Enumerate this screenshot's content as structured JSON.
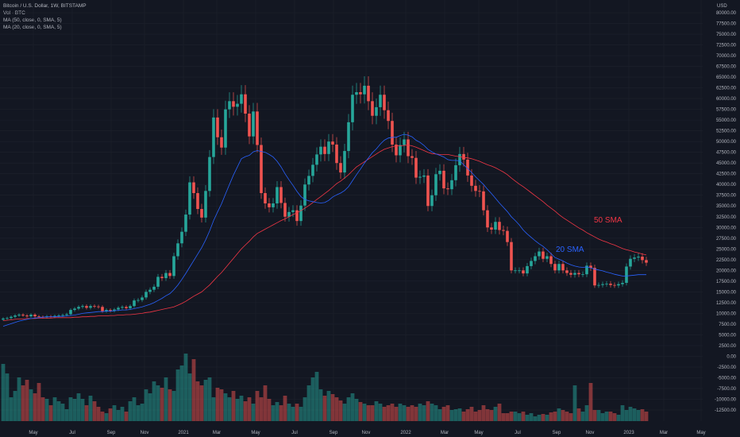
{
  "header": {
    "title": "Bitcoin / U.S. Dollar, 1W, BITSTAMP",
    "vol": "Vol · BTC",
    "ma50": "MA (50, close, 0, SMA, 5)",
    "ma20": "MA (20, close, 0, SMA, 5)"
  },
  "colors": {
    "up": "#26a69a",
    "down": "#ef5350",
    "sma20": "#2962ff",
    "sma50": "#f23645",
    "bg": "#131722",
    "text": "#b2b5be"
  },
  "chart_data": {
    "type": "candlestick",
    "price_axis": {
      "label": "USD",
      "ticks": [
        "80000.00",
        "77500.00",
        "75000.00",
        "72500.00",
        "70000.00",
        "67500.00",
        "65000.00",
        "62500.00",
        "60000.00",
        "57500.00",
        "55000.00",
        "52500.00",
        "50000.00",
        "47500.00",
        "45000.00",
        "42500.00",
        "40000.00",
        "37500.00",
        "35000.00",
        "32500.00",
        "30000.00",
        "27500.00",
        "25000.00",
        "22500.00",
        "20000.00",
        "17500.00",
        "15000.00",
        "12500.00",
        "10000.00",
        "7500.00",
        "5000.00",
        "2500.00",
        "0.00",
        "-2500.00",
        "-5000.00",
        "-7500.00",
        "-10000.00",
        "-12500.00"
      ]
    },
    "time_axis": [
      "May",
      "Jul",
      "Sep",
      "Nov",
      "2021",
      "Mar",
      "May",
      "Jul",
      "Sep",
      "Nov",
      "2022",
      "Mar",
      "May",
      "Jul",
      "Sep",
      "Nov",
      "2023",
      "Mar",
      "May"
    ],
    "annotations": [
      {
        "text": "50 SMA",
        "series": "sma50"
      },
      {
        "text": "20 SMA",
        "series": "sma20"
      }
    ],
    "closes": [
      8800,
      8900,
      9200,
      9500,
      9700,
      9500,
      9300,
      9700,
      9300,
      9200,
      9100,
      9300,
      9200,
      9400,
      9500,
      9600,
      9800,
      10800,
      11100,
      11500,
      11700,
      11300,
      11700,
      11600,
      11500,
      10500,
      10800,
      10600,
      10900,
      11300,
      11500,
      11200,
      11700,
      13000,
      13100,
      13700,
      15000,
      15500,
      16200,
      18500,
      18200,
      19400,
      18700,
      23300,
      26300,
      29000,
      33000,
      40500,
      38000,
      34300,
      32300,
      38500,
      46400,
      55600,
      51000,
      48600,
      57500,
      59400,
      58100,
      58800,
      61000,
      56500,
      51200,
      57000,
      49200,
      38000,
      35600,
      34700,
      35600,
      39400,
      35700,
      32500,
      33600,
      34000,
      31500,
      35100,
      40000,
      42000,
      44600,
      47000,
      48800,
      47100,
      50000,
      49300,
      45000,
      42800,
      47800,
      54500,
      60900,
      61500,
      61000,
      63000,
      59400,
      56000,
      58000,
      60900,
      57300,
      54800,
      49300,
      46800,
      49200,
      50500,
      46600,
      46200,
      41600,
      41800,
      42100,
      35000,
      37500,
      42400,
      43200,
      39100,
      38900,
      41000,
      44500,
      47100,
      45800,
      42100,
      39700,
      38500,
      38400,
      34000,
      30000,
      29500,
      31300,
      29400,
      29200,
      26600,
      20000,
      20000,
      20000,
      19300,
      21000,
      22200,
      23300,
      24400,
      22700,
      23300,
      21500,
      20000,
      21500,
      20000,
      19400,
      19000,
      19400,
      19100,
      19100,
      21100,
      20600,
      16500,
      16600,
      16800,
      16900,
      16600,
      16500,
      16800,
      17100,
      20900,
      22700,
      23000,
      23200,
      22400,
      21800
    ],
    "sma20": [
      7000,
      7300,
      7600,
      7900,
      8200,
      8400,
      8600,
      8800,
      8900,
      9000,
      9100,
      9200,
      9200,
      9200,
      9300,
      9300,
      9400,
      9500,
      9600,
      9800,
      10000,
      10100,
      10200,
      10300,
      10400,
      10400,
      10500,
      10500,
      10600,
      10700,
      10800,
      10800,
      10900,
      11100,
      11300,
      11500,
      11800,
      12100,
      12500,
      13000,
      13500,
      14100,
      14600,
      15500,
      16600,
      17900,
      19300,
      20800,
      22300,
      23800,
      25300,
      27100,
      29200,
      31600,
      33600,
      35500,
      37800,
      40000,
      42200,
      44100,
      46000,
      46500,
      46800,
      47600,
      47900,
      47700,
      47500,
      47000,
      46400,
      45400,
      44100,
      42500,
      41100,
      39800,
      38400,
      37200,
      36500,
      36200,
      36000,
      35800,
      35700,
      35800,
      36300,
      37100,
      37600,
      38000,
      38600,
      39500,
      40900,
      42300,
      43600,
      45000,
      46200,
      47400,
      48300,
      49400,
      50300,
      50800,
      51000,
      51000,
      51400,
      51700,
      51500,
      51100,
      50300,
      49800,
      49100,
      48200,
      47600,
      47100,
      46800,
      46400,
      45800,
      45600,
      45600,
      45500,
      44600,
      43700,
      42800,
      41800,
      40900,
      40000,
      38900,
      37900,
      36800,
      35700,
      34700,
      33700,
      32500,
      31600,
      30600,
      29400,
      28500,
      27700,
      26900,
      26200,
      25600,
      24800,
      23900,
      23000,
      22600,
      22200,
      21700,
      21300,
      21000,
      20800,
      20700,
      20800,
      20600,
      20300,
      20100,
      19900,
      19600,
      19400,
      19100,
      18900,
      18700,
      18700,
      18800,
      18900,
      19000,
      19000,
      19000
    ],
    "sma50": [
      8300,
      8400,
      8500,
      8600,
      8700,
      8700,
      8800,
      8800,
      8800,
      8900,
      8900,
      8900,
      8900,
      9000,
      9000,
      9000,
      9000,
      9000,
      9100,
      9100,
      9200,
      9200,
      9300,
      9300,
      9400,
      9400,
      9400,
      9500,
      9500,
      9600,
      9600,
      9700,
      9700,
      9800,
      9900,
      10000,
      10200,
      10300,
      10500,
      10700,
      10900,
      11100,
      11300,
      11500,
      11900,
      12300,
      12800,
      13400,
      14000,
      14500,
      15000,
      15800,
      16600,
      17600,
      18600,
      19500,
      20600,
      21700,
      22800,
      23900,
      25000,
      25900,
      26800,
      27800,
      28600,
      29100,
      29600,
      30100,
      30600,
      31100,
      31600,
      32000,
      32500,
      33000,
      33400,
      33900,
      34500,
      35100,
      35800,
      36500,
      37200,
      37900,
      38600,
      39400,
      40200,
      40800,
      41500,
      42300,
      43200,
      44100,
      44700,
      45300,
      45900,
      46500,
      47100,
      47700,
      48200,
      48500,
      48800,
      49000,
      49000,
      49100,
      49200,
      49000,
      48700,
      48300,
      47900,
      47500,
      47200,
      47100,
      47000,
      47000,
      47000,
      46800,
      46600,
      46500,
      46300,
      46200,
      46000,
      45700,
      45400,
      45000,
      44600,
      44300,
      43900,
      43400,
      42900,
      42300,
      41500,
      40800,
      40100,
      39500,
      38800,
      38100,
      37400,
      36700,
      36000,
      35200,
      34500,
      33800,
      33000,
      32300,
      31700,
      31100,
      30500,
      29900,
      29400,
      28800,
      28300,
      27800,
      27300,
      26900,
      26600,
      26200,
      25900,
      25500,
      25100,
      24800,
      24600,
      24300,
      24100,
      23800,
      23600
    ],
    "volume_ratio": [
      0.72,
      0.6,
      0.3,
      0.38,
      0.55,
      0.45,
      0.52,
      0.4,
      0.35,
      0.48,
      0.3,
      0.28,
      0.2,
      0.3,
      0.25,
      0.22,
      0.15,
      0.3,
      0.28,
      0.35,
      0.28,
      0.2,
      0.32,
      0.25,
      0.18,
      0.12,
      0.1,
      0.16,
      0.2,
      0.14,
      0.18,
      0.12,
      0.25,
      0.3,
      0.2,
      0.22,
      0.4,
      0.35,
      0.5,
      0.45,
      0.42,
      0.55,
      0.4,
      0.38,
      0.65,
      0.7,
      0.85,
      0.6,
      0.78,
      0.5,
      0.45,
      0.52,
      0.55,
      0.3,
      0.42,
      0.4,
      0.35,
      0.3,
      0.38,
      0.28,
      0.32,
      0.25,
      0.3,
      0.22,
      0.38,
      0.3,
      0.45,
      0.28,
      0.2,
      0.24,
      0.2,
      0.32,
      0.22,
      0.18,
      0.22,
      0.18,
      0.3,
      0.45,
      0.55,
      0.62,
      0.4,
      0.32,
      0.38,
      0.34,
      0.3,
      0.26,
      0.22,
      0.3,
      0.35,
      0.28,
      0.24,
      0.22,
      0.2,
      0.2,
      0.25,
      0.22,
      0.18,
      0.2,
      0.22,
      0.18,
      0.22,
      0.2,
      0.18,
      0.2,
      0.18,
      0.22,
      0.2,
      0.25,
      0.22,
      0.2,
      0.15,
      0.18,
      0.2,
      0.14,
      0.15,
      0.16,
      0.12,
      0.15,
      0.18,
      0.12,
      0.14,
      0.2,
      0.15,
      0.14,
      0.18,
      0.22,
      0.1,
      0.1,
      0.12,
      0.12,
      0.1,
      0.12,
      0.08,
      0.1,
      0.06,
      0.08,
      0.09,
      0.08,
      0.11,
      0.12,
      0.16,
      0.14,
      0.12,
      0.1,
      0.45,
      0.16,
      0.12,
      0.2,
      0.48,
      0.14,
      0.14,
      0.1,
      0.12,
      0.12,
      0.1,
      0.08,
      0.2,
      0.14,
      0.18,
      0.16,
      0.14,
      0.15,
      0.12
    ]
  }
}
